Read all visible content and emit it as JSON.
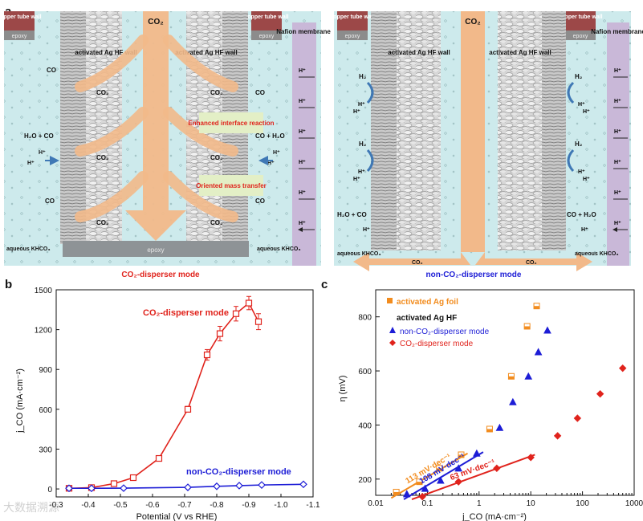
{
  "panel_labels": {
    "a": "a",
    "b": "b",
    "c": "c"
  },
  "watermark": "大数据溯源",
  "panel_a": {
    "left": {
      "copper": "copper tube wall",
      "epoxy": "epoxy",
      "silver": "activated Ag HF wall",
      "co2": "CO₂",
      "membrane": "Nafion membrane",
      "hplus": "H⁺",
      "co": "CO",
      "h2o_co": "H₂O + CO",
      "co_h2o": "CO + H₂O",
      "enhanced": "Enhanced interface reaction",
      "oriented": "Oriented mass transfer",
      "aqueous": "aqueous KHCO₃",
      "mode": "CO₂-disperser mode"
    },
    "right": {
      "h2": "H₂",
      "mode": "non-CO₂-disperser mode"
    }
  },
  "chart_data": [
    {
      "type": "line",
      "title": "",
      "xlabel": "Potential (V vs RHE)",
      "ylabel": "j_CO (mA·cm⁻²)",
      "xlim": [
        -0.3,
        -1.1
      ],
      "ylim": [
        -60,
        1500
      ],
      "xticks": [
        -0.3,
        -0.4,
        -0.5,
        -0.6,
        -0.7,
        -0.8,
        -0.9,
        -1.0,
        -1.1
      ],
      "yticks": [
        0,
        300,
        600,
        900,
        1200,
        1500
      ],
      "series": [
        {
          "name": "CO₂-disperser mode",
          "color": "#e0231c",
          "x": [
            -0.34,
            -0.41,
            -0.48,
            -0.54,
            -0.62,
            -0.71,
            -0.77,
            -0.81,
            -0.86,
            -0.9,
            -0.93
          ],
          "y": [
            5,
            10,
            40,
            85,
            230,
            600,
            1010,
            1170,
            1320,
            1400,
            1260
          ],
          "err": [
            5,
            5,
            6,
            8,
            12,
            22,
            40,
            55,
            55,
            50,
            60
          ]
        },
        {
          "name": "non-CO₂-disperser mode",
          "color": "#1d1dd6",
          "x": [
            -0.34,
            -0.41,
            -0.51,
            -0.71,
            -0.8,
            -0.87,
            -0.94,
            -1.07
          ],
          "y": [
            5,
            5,
            6,
            12,
            20,
            25,
            30,
            35
          ],
          "err": [
            0,
            0,
            0,
            0,
            0,
            0,
            0,
            0
          ]
        }
      ]
    },
    {
      "type": "scatter",
      "title": "",
      "xlabel": "j_CO (mA·cm⁻²)",
      "ylabel": "η (mV)",
      "xscale": "log",
      "xlim": [
        0.01,
        1000
      ],
      "ylim": [
        140,
        900
      ],
      "xticks": [
        "0.01",
        "0.1",
        "1",
        "10",
        "100",
        "1000"
      ],
      "yticks": [
        200,
        400,
        600,
        800
      ],
      "legend_group_title": "activated Ag HF",
      "series": [
        {
          "name": "activated Ag foil",
          "marker": "square",
          "color": "#f28c1e",
          "x": [
            0.025,
            0.07,
            0.17,
            0.45,
            1.6,
            4.2,
            8.5,
            13
          ],
          "y": [
            152,
            190,
            240,
            290,
            385,
            580,
            765,
            840
          ],
          "fit_x": [
            0.02,
            0.6
          ],
          "fit_y": [
            130,
            295
          ],
          "fit_label": "113 mV·dec⁻¹"
        },
        {
          "name": "non-CO₂-disperser mode",
          "marker": "triangle",
          "color": "#1d1dd6",
          "x": [
            0.04,
            0.09,
            0.18,
            0.4,
            0.9,
            2.5,
            4.5,
            9,
            14,
            21
          ],
          "y": [
            145,
            165,
            195,
            240,
            295,
            390,
            485,
            580,
            670,
            750
          ],
          "fit_x": [
            0.035,
            1.2
          ],
          "fit_y": [
            125,
            300
          ],
          "fit_label": "108 mV·dec⁻¹"
        },
        {
          "name": "CO₂-disperser mode",
          "marker": "diamond",
          "color": "#e0231c",
          "x": [
            0.08,
            0.4,
            2.2,
            10,
            33,
            80,
            220,
            600
          ],
          "y": [
            135,
            190,
            240,
            280,
            360,
            425,
            515,
            610
          ],
          "fit_x": [
            0.05,
            12
          ],
          "fit_y": [
            125,
            290
          ],
          "fit_label": "63 mV·dec⁻¹"
        }
      ]
    }
  ]
}
